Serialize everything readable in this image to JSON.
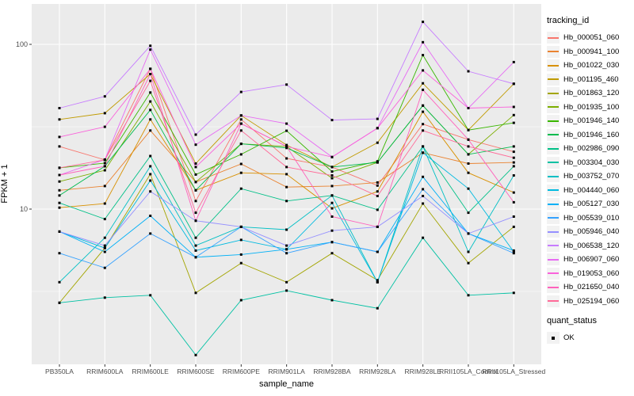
{
  "figure": {
    "background": "#ffffff",
    "panel_background": "#EBEBEB",
    "gridline_color": "#FFFFFF",
    "tick_label_color": "#4D4D4D",
    "marker_color": "#000000"
  },
  "x_axis": {
    "label": "sample_name",
    "tick_labels": [
      "PB350LA",
      "RRIM600LA",
      "RRIM600LE",
      "RRIM600SE",
      "RRIM600PE",
      "RRIM901LA",
      "RRIM928BA",
      "RRIM928LA",
      "RRIM928LE",
      "RRII105LA_Control",
      "RRII105LA_Stressed"
    ]
  },
  "y_axis": {
    "label": "FPKM + 1",
    "scale": "log10",
    "tick_labels": [
      "100",
      "10"
    ],
    "tick_values": [
      100,
      10
    ],
    "minor_tick_values": [
      31.623,
      3.1623
    ]
  },
  "legend": {
    "tracking_title": "tracking_id",
    "quant_title": "quant_status",
    "quant_items": [
      {
        "label": "OK",
        "marker": "black-square"
      }
    ]
  },
  "chart_data": {
    "type": "line",
    "title": "",
    "xlabel": "sample_name",
    "ylabel": "FPKM + 1",
    "yscale": "log",
    "ylim": [
      1.1,
      176
    ],
    "grid": true,
    "legend_position": "right",
    "categories": [
      "PB350LA",
      "RRIM600LA",
      "RRIM600LE",
      "RRIM600SE",
      "RRIM600PE",
      "RRIM901LA",
      "RRIM928BA",
      "RRIM928LA",
      "RRIM928LE",
      "RRII105LA_Control",
      "RRII105LA_Stressed"
    ],
    "point_marker": "small black square (quant_status = OK)",
    "series": [
      {
        "name": "Hb_000051_060",
        "color": "#F8766D",
        "values": [
          24,
          19.9,
          71,
          11.2,
          35,
          20.3,
          18,
          13.9,
          32.8,
          26.4,
          22.3
        ]
      },
      {
        "name": "Hb_000941_100",
        "color": "#EA8331",
        "values": [
          13,
          13.8,
          30,
          14.6,
          18.8,
          13.6,
          13.8,
          14.5,
          22,
          18.9,
          19.2
        ]
      },
      {
        "name": "Hb_001022_030",
        "color": "#D89000",
        "values": [
          10.2,
          10.8,
          35,
          13,
          16.6,
          16.3,
          10.1,
          12.8,
          39,
          16.6,
          12.6
        ]
      },
      {
        "name": "Hb_001195_460",
        "color": "#C09B00",
        "values": [
          35,
          38.2,
          66,
          18.9,
          37,
          24.5,
          18,
          25.3,
          58,
          30.2,
          57.6
        ]
      },
      {
        "name": "Hb_001863_120",
        "color": "#A3A500",
        "values": [
          2.7,
          5.8,
          16.3,
          3.1,
          4.7,
          3.6,
          5.4,
          3.7,
          10.8,
          4.7,
          7.8
        ]
      },
      {
        "name": "Hb_001935_100",
        "color": "#7CAE00",
        "values": [
          14.7,
          17.2,
          45,
          14.6,
          24.9,
          24,
          15.4,
          19.2,
          42.5,
          21.5,
          37.2
        ]
      },
      {
        "name": "Hb_001946_140",
        "color": "#39B600",
        "values": [
          17.8,
          19,
          51,
          16.2,
          21.5,
          29.9,
          16.9,
          19.5,
          86,
          30.2,
          33.4
        ]
      },
      {
        "name": "Hb_001946_160",
        "color": "#00BB4E",
        "values": [
          12.1,
          18.2,
          40,
          13,
          24.9,
          23.5,
          18,
          19.2,
          42.5,
          21.5,
          24
        ]
      },
      {
        "name": "Hb_002986_090",
        "color": "#00C087",
        "values": [
          10.9,
          8.7,
          21,
          6.7,
          13.3,
          11.2,
          12.1,
          9.9,
          24,
          9.5,
          18.2
        ]
      },
      {
        "name": "Hb_003304_030",
        "color": "#00C1A3",
        "values": [
          2.7,
          2.9,
          3.0,
          1.3,
          2.8,
          3.2,
          2.8,
          2.5,
          6.7,
          3.0,
          3.1
        ]
      },
      {
        "name": "Hb_003752_070",
        "color": "#00BFC4",
        "values": [
          3.6,
          6.7,
          18.2,
          6.0,
          7.8,
          7.5,
          12.1,
          3.6,
          24,
          5.5,
          16
        ]
      },
      {
        "name": "Hb_004440_060",
        "color": "#00BAE0",
        "values": [
          7.3,
          5.8,
          14.9,
          5.6,
          6.5,
          5.7,
          10.9,
          3.6,
          22,
          13.3,
          5.5
        ]
      },
      {
        "name": "Hb_005127_030",
        "color": "#00B0F6",
        "values": [
          7.3,
          5.5,
          9.1,
          5.1,
          5.3,
          5.7,
          6.3,
          5.5,
          15.7,
          7.1,
          5.6
        ]
      },
      {
        "name": "Hb_005539_010",
        "color": "#35A2FF",
        "values": [
          5.4,
          4.4,
          7.1,
          5.1,
          7.8,
          5.4,
          6.3,
          5.5,
          13.2,
          7.1,
          5.4
        ]
      },
      {
        "name": "Hb_005946_040",
        "color": "#9590FF",
        "values": [
          7.3,
          6.0,
          12.8,
          8.5,
          7.8,
          6.0,
          7.4,
          7.8,
          12.0,
          7.1,
          9.0
        ]
      },
      {
        "name": "Hb_006538_120",
        "color": "#C77CFF",
        "values": [
          41,
          48.3,
          98,
          28.3,
          51.4,
          57,
          34.7,
          35.3,
          137,
          68.6,
          57.6
        ]
      },
      {
        "name": "Hb_006907_060",
        "color": "#E76BF3",
        "values": [
          16.1,
          20,
          93,
          24.6,
          37,
          33,
          20.7,
          31,
          103,
          41,
          78
        ]
      },
      {
        "name": "Hb_019053_060",
        "color": "#FA62DB",
        "values": [
          27.4,
          31.6,
          71,
          18,
          33,
          24,
          20.7,
          31,
          69.5,
          41,
          41.7
        ]
      },
      {
        "name": "Hb_021650_040",
        "color": "#FF62BC",
        "values": [
          16.1,
          18.2,
          66,
          8.5,
          33,
          24,
          9.0,
          7.8,
          53,
          26.4,
          11
        ]
      },
      {
        "name": "Hb_025194_060",
        "color": "#FF6A98",
        "values": [
          17.8,
          19.9,
          60,
          9.5,
          30,
          18,
          16,
          12,
          30,
          24,
          20.5
        ]
      }
    ]
  }
}
